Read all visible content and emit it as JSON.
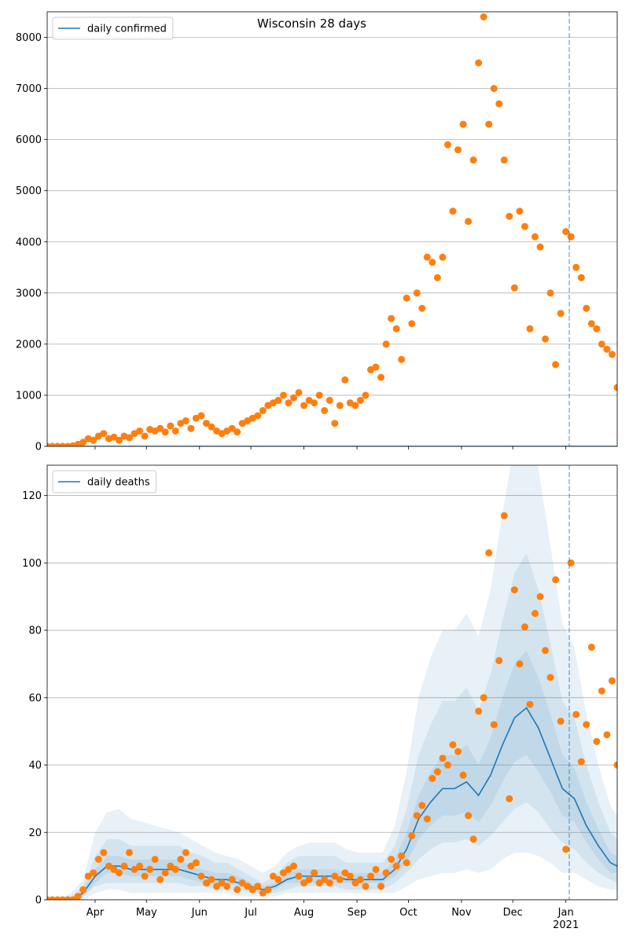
{
  "chart_data": [
    {
      "type": "scatter",
      "title": "Wisconsin 28 days",
      "xlim": [
        0,
        333
      ],
      "ylim": [
        0,
        8500
      ],
      "xticks": [
        28,
        58,
        89,
        119,
        150,
        181,
        211,
        242,
        272,
        303
      ],
      "xtick_labels": false,
      "yticks": [
        0,
        1000,
        2000,
        3000,
        4000,
        5000,
        6000,
        7000,
        8000
      ],
      "grid": "y",
      "legend": "upper left",
      "vline": {
        "x": 305,
        "color": "#1f77b4"
      },
      "series": [
        {
          "name": "daily confirmed",
          "type": "line",
          "color": "#1f77b4",
          "x": [
            0,
            333
          ],
          "values": [
            0,
            0
          ]
        },
        {
          "type": "scatter",
          "color": "#ff7f0e",
          "x": [
            0,
            3,
            6,
            9,
            12,
            15,
            18,
            21,
            24,
            27,
            30,
            33,
            36,
            39,
            42,
            45,
            48,
            51,
            54,
            57,
            60,
            63,
            66,
            69,
            72,
            75,
            78,
            81,
            84,
            87,
            90,
            93,
            96,
            99,
            102,
            105,
            108,
            111,
            114,
            117,
            120,
            123,
            126,
            129,
            132,
            135,
            138,
            141,
            144,
            147,
            150,
            153,
            156,
            159,
            162,
            165,
            168,
            171,
            174,
            177,
            180,
            183,
            186,
            189,
            192,
            195,
            198,
            201,
            204,
            207,
            210,
            213,
            216,
            219,
            222,
            225,
            228,
            231,
            234,
            237,
            240,
            243,
            246,
            249,
            252,
            255,
            258,
            261,
            264,
            267,
            270,
            273,
            276,
            279,
            282,
            285,
            288,
            291,
            294,
            297,
            300,
            303,
            306,
            309,
            312,
            315,
            318,
            321,
            324,
            327,
            330,
            333
          ],
          "values": [
            0,
            0,
            0,
            0,
            0,
            10,
            40,
            80,
            150,
            120,
            200,
            250,
            150,
            180,
            120,
            200,
            170,
            250,
            300,
            200,
            330,
            300,
            350,
            280,
            400,
            300,
            450,
            500,
            350,
            550,
            600,
            450,
            380,
            300,
            250,
            300,
            350,
            280,
            450,
            500,
            550,
            600,
            700,
            800,
            850,
            900,
            1000,
            850,
            950,
            1050,
            800,
            900,
            850,
            1000,
            700,
            900,
            450,
            800,
            1300,
            850,
            800,
            900,
            1000,
            1500,
            1550,
            1350,
            2000,
            2500,
            2300,
            1700,
            2900,
            2400,
            3000,
            2700,
            3700,
            3600,
            3300,
            3700,
            5900,
            4600,
            5800,
            6300,
            4400,
            5600,
            7500,
            8400,
            6300,
            7000,
            6700,
            5600,
            4500,
            3100,
            4600,
            4300,
            2300,
            4100,
            3900,
            2100,
            3000,
            1600,
            2600,
            4200,
            4100,
            3500,
            3300,
            2700,
            2400,
            2300,
            2000,
            1900,
            1800,
            1150
          ]
        }
      ]
    },
    {
      "type": "scatter",
      "xlim": [
        0,
        333
      ],
      "ylim": [
        0,
        129
      ],
      "xticks": [
        {
          "value": 28,
          "label": "Apr"
        },
        {
          "value": 58,
          "label": "May"
        },
        {
          "value": 89,
          "label": "Jun"
        },
        {
          "value": 119,
          "label": "Jul"
        },
        {
          "value": 150,
          "label": "Aug"
        },
        {
          "value": 181,
          "label": "Sep"
        },
        {
          "value": 211,
          "label": "Oct"
        },
        {
          "value": 242,
          "label": "Nov"
        },
        {
          "value": 272,
          "label": "Dec"
        },
        {
          "value": 303,
          "label": "Jan"
        }
      ],
      "x_sublabel": {
        "value": 303,
        "label": "2021"
      },
      "yticks": [
        0,
        20,
        40,
        60,
        80,
        100,
        120
      ],
      "grid": "y",
      "legend": "upper left",
      "vline": {
        "x": 305,
        "color": "#1f77b4"
      },
      "bands": [
        {
          "color": "#1f77b4",
          "opacity": 0.1,
          "x": [
            0,
            7,
            14,
            21,
            28,
            35,
            42,
            49,
            56,
            63,
            70,
            77,
            84,
            91,
            98,
            105,
            112,
            119,
            126,
            133,
            140,
            147,
            154,
            161,
            168,
            175,
            182,
            189,
            196,
            203,
            210,
            217,
            224,
            231,
            238,
            245,
            252,
            259,
            266,
            273,
            280,
            287,
            294,
            301,
            308,
            315,
            322,
            329,
            333
          ],
          "lower": [
            0,
            0,
            0,
            0,
            2,
            3,
            3,
            2,
            2,
            2,
            2,
            2,
            2,
            2,
            2,
            2,
            1,
            1,
            1,
            1,
            2,
            2,
            2,
            2,
            2,
            2,
            2,
            2,
            2,
            2,
            4,
            6,
            7,
            8,
            8,
            9,
            8,
            9,
            12,
            14,
            14,
            13,
            11,
            8,
            8,
            6,
            4,
            3,
            3
          ],
          "upper": [
            0,
            0,
            2,
            6,
            20,
            26,
            27,
            24,
            23,
            22,
            21,
            20,
            18,
            16,
            14,
            13,
            12,
            10,
            8,
            10,
            14,
            16,
            17,
            17,
            17,
            15,
            14,
            14,
            14,
            22,
            38,
            60,
            72,
            80,
            80,
            85,
            78,
            92,
            115,
            135,
            142,
            128,
            105,
            82,
            75,
            55,
            40,
            28,
            25
          ]
        },
        {
          "color": "#1f77b4",
          "opacity": 0.1,
          "x": [
            0,
            7,
            14,
            21,
            28,
            35,
            42,
            49,
            56,
            63,
            70,
            77,
            84,
            91,
            98,
            105,
            112,
            119,
            126,
            133,
            140,
            147,
            154,
            161,
            168,
            175,
            182,
            189,
            196,
            203,
            210,
            217,
            224,
            231,
            238,
            245,
            252,
            259,
            266,
            273,
            280,
            287,
            294,
            301,
            308,
            315,
            322,
            329,
            333
          ],
          "lower": [
            0,
            0,
            0,
            1,
            4,
            5,
            5,
            5,
            5,
            5,
            5,
            5,
            4,
            4,
            3,
            3,
            3,
            2,
            2,
            2,
            3,
            4,
            4,
            4,
            4,
            3,
            3,
            3,
            3,
            5,
            8,
            12,
            15,
            17,
            17,
            18,
            16,
            19,
            23,
            27,
            29,
            26,
            21,
            17,
            15,
            11,
            8,
            6,
            5
          ],
          "upper": [
            0,
            0,
            1,
            4,
            13,
            18,
            18,
            16,
            16,
            16,
            16,
            16,
            14,
            13,
            11,
            11,
            9,
            7,
            5,
            7,
            11,
            13,
            13,
            13,
            13,
            11,
            11,
            11,
            11,
            16,
            27,
            43,
            52,
            59,
            59,
            63,
            56,
            67,
            83,
            97,
            103,
            92,
            76,
            59,
            54,
            40,
            29,
            20,
            18
          ]
        },
        {
          "color": "#1f77b4",
          "opacity": 0.1,
          "x": [
            0,
            7,
            14,
            21,
            28,
            35,
            42,
            49,
            56,
            63,
            70,
            77,
            84,
            91,
            98,
            105,
            112,
            119,
            126,
            133,
            140,
            147,
            154,
            161,
            168,
            175,
            182,
            189,
            196,
            203,
            210,
            217,
            224,
            231,
            238,
            245,
            252,
            259,
            266,
            273,
            280,
            287,
            294,
            301,
            308,
            315,
            322,
            329,
            333
          ],
          "lower": [
            0,
            0,
            0,
            1,
            5,
            8,
            8,
            7,
            7,
            7,
            7,
            7,
            6,
            5,
            5,
            5,
            4,
            3,
            2,
            3,
            5,
            5,
            5,
            5,
            5,
            5,
            5,
            5,
            5,
            7,
            11,
            18,
            22,
            25,
            25,
            26,
            23,
            28,
            35,
            41,
            43,
            38,
            32,
            25,
            23,
            17,
            12,
            8,
            8
          ],
          "upper": [
            0,
            0,
            0,
            3,
            9,
            13,
            13,
            12,
            12,
            12,
            12,
            12,
            10,
            9,
            8,
            8,
            7,
            5,
            4,
            5,
            8,
            9,
            9,
            9,
            9,
            8,
            8,
            8,
            8,
            12,
            20,
            31,
            38,
            43,
            43,
            46,
            40,
            48,
            60,
            70,
            74,
            66,
            55,
            43,
            39,
            29,
            21,
            14,
            13
          ]
        }
      ],
      "series": [
        {
          "name": "daily deaths",
          "type": "line",
          "color": "#1f77b4",
          "x": [
            0,
            7,
            14,
            21,
            28,
            35,
            42,
            49,
            56,
            63,
            70,
            77,
            84,
            91,
            98,
            105,
            112,
            119,
            126,
            133,
            140,
            147,
            154,
            161,
            168,
            175,
            182,
            189,
            196,
            203,
            210,
            217,
            224,
            231,
            238,
            245,
            252,
            259,
            266,
            273,
            280,
            287,
            294,
            301,
            308,
            315,
            322,
            329,
            333
          ],
          "values": [
            0,
            0,
            0,
            2,
            7,
            10,
            10,
            9,
            9,
            9,
            9,
            9,
            8,
            7,
            6,
            6,
            5,
            4,
            3,
            4,
            6,
            7,
            7,
            7,
            7,
            6,
            6,
            6,
            6,
            9,
            15,
            24,
            29,
            33,
            33,
            35,
            31,
            37,
            46,
            54,
            57,
            51,
            42,
            33,
            30,
            22,
            16,
            11,
            10
          ]
        },
        {
          "type": "scatter",
          "color": "#ff7f0e",
          "x": [
            0,
            3,
            6,
            9,
            12,
            15,
            18,
            21,
            24,
            27,
            30,
            33,
            36,
            39,
            42,
            45,
            48,
            51,
            54,
            57,
            60,
            63,
            66,
            69,
            72,
            75,
            78,
            81,
            84,
            87,
            90,
            93,
            96,
            99,
            102,
            105,
            108,
            111,
            114,
            117,
            120,
            123,
            126,
            129,
            132,
            135,
            138,
            141,
            144,
            147,
            150,
            153,
            156,
            159,
            162,
            165,
            168,
            171,
            174,
            177,
            180,
            183,
            186,
            189,
            192,
            195,
            198,
            201,
            204,
            207,
            210,
            213,
            216,
            219,
            222,
            225,
            228,
            231,
            234,
            237,
            240,
            243,
            246,
            249,
            252,
            255,
            258,
            261,
            264,
            267,
            270,
            273,
            276,
            279,
            282,
            285,
            288,
            291,
            294,
            297,
            300,
            303,
            306,
            309,
            312,
            315,
            318,
            321,
            324,
            327,
            330,
            333
          ],
          "values": [
            0,
            0,
            0,
            0,
            0,
            0,
            1,
            3,
            7,
            8,
            12,
            14,
            10,
            9,
            8,
            10,
            14,
            9,
            10,
            7,
            9,
            12,
            6,
            8,
            10,
            9,
            12,
            14,
            10,
            11,
            7,
            5,
            6,
            4,
            5,
            4,
            6,
            3,
            5,
            4,
            3,
            4,
            2,
            3,
            7,
            6,
            8,
            9,
            10,
            7,
            5,
            6,
            8,
            5,
            6,
            5,
            7,
            6,
            8,
            7,
            5,
            6,
            4,
            7,
            9,
            4,
            8,
            12,
            10,
            13,
            11,
            19,
            25,
            28,
            24,
            36,
            38,
            42,
            40,
            46,
            44,
            37,
            25,
            18,
            56,
            60,
            103,
            52,
            71,
            114,
            30,
            92,
            70,
            81,
            58,
            85,
            90,
            74,
            66,
            95,
            53,
            15,
            100,
            55,
            41,
            52,
            75,
            47,
            62,
            49,
            65,
            40
          ]
        }
      ]
    }
  ]
}
